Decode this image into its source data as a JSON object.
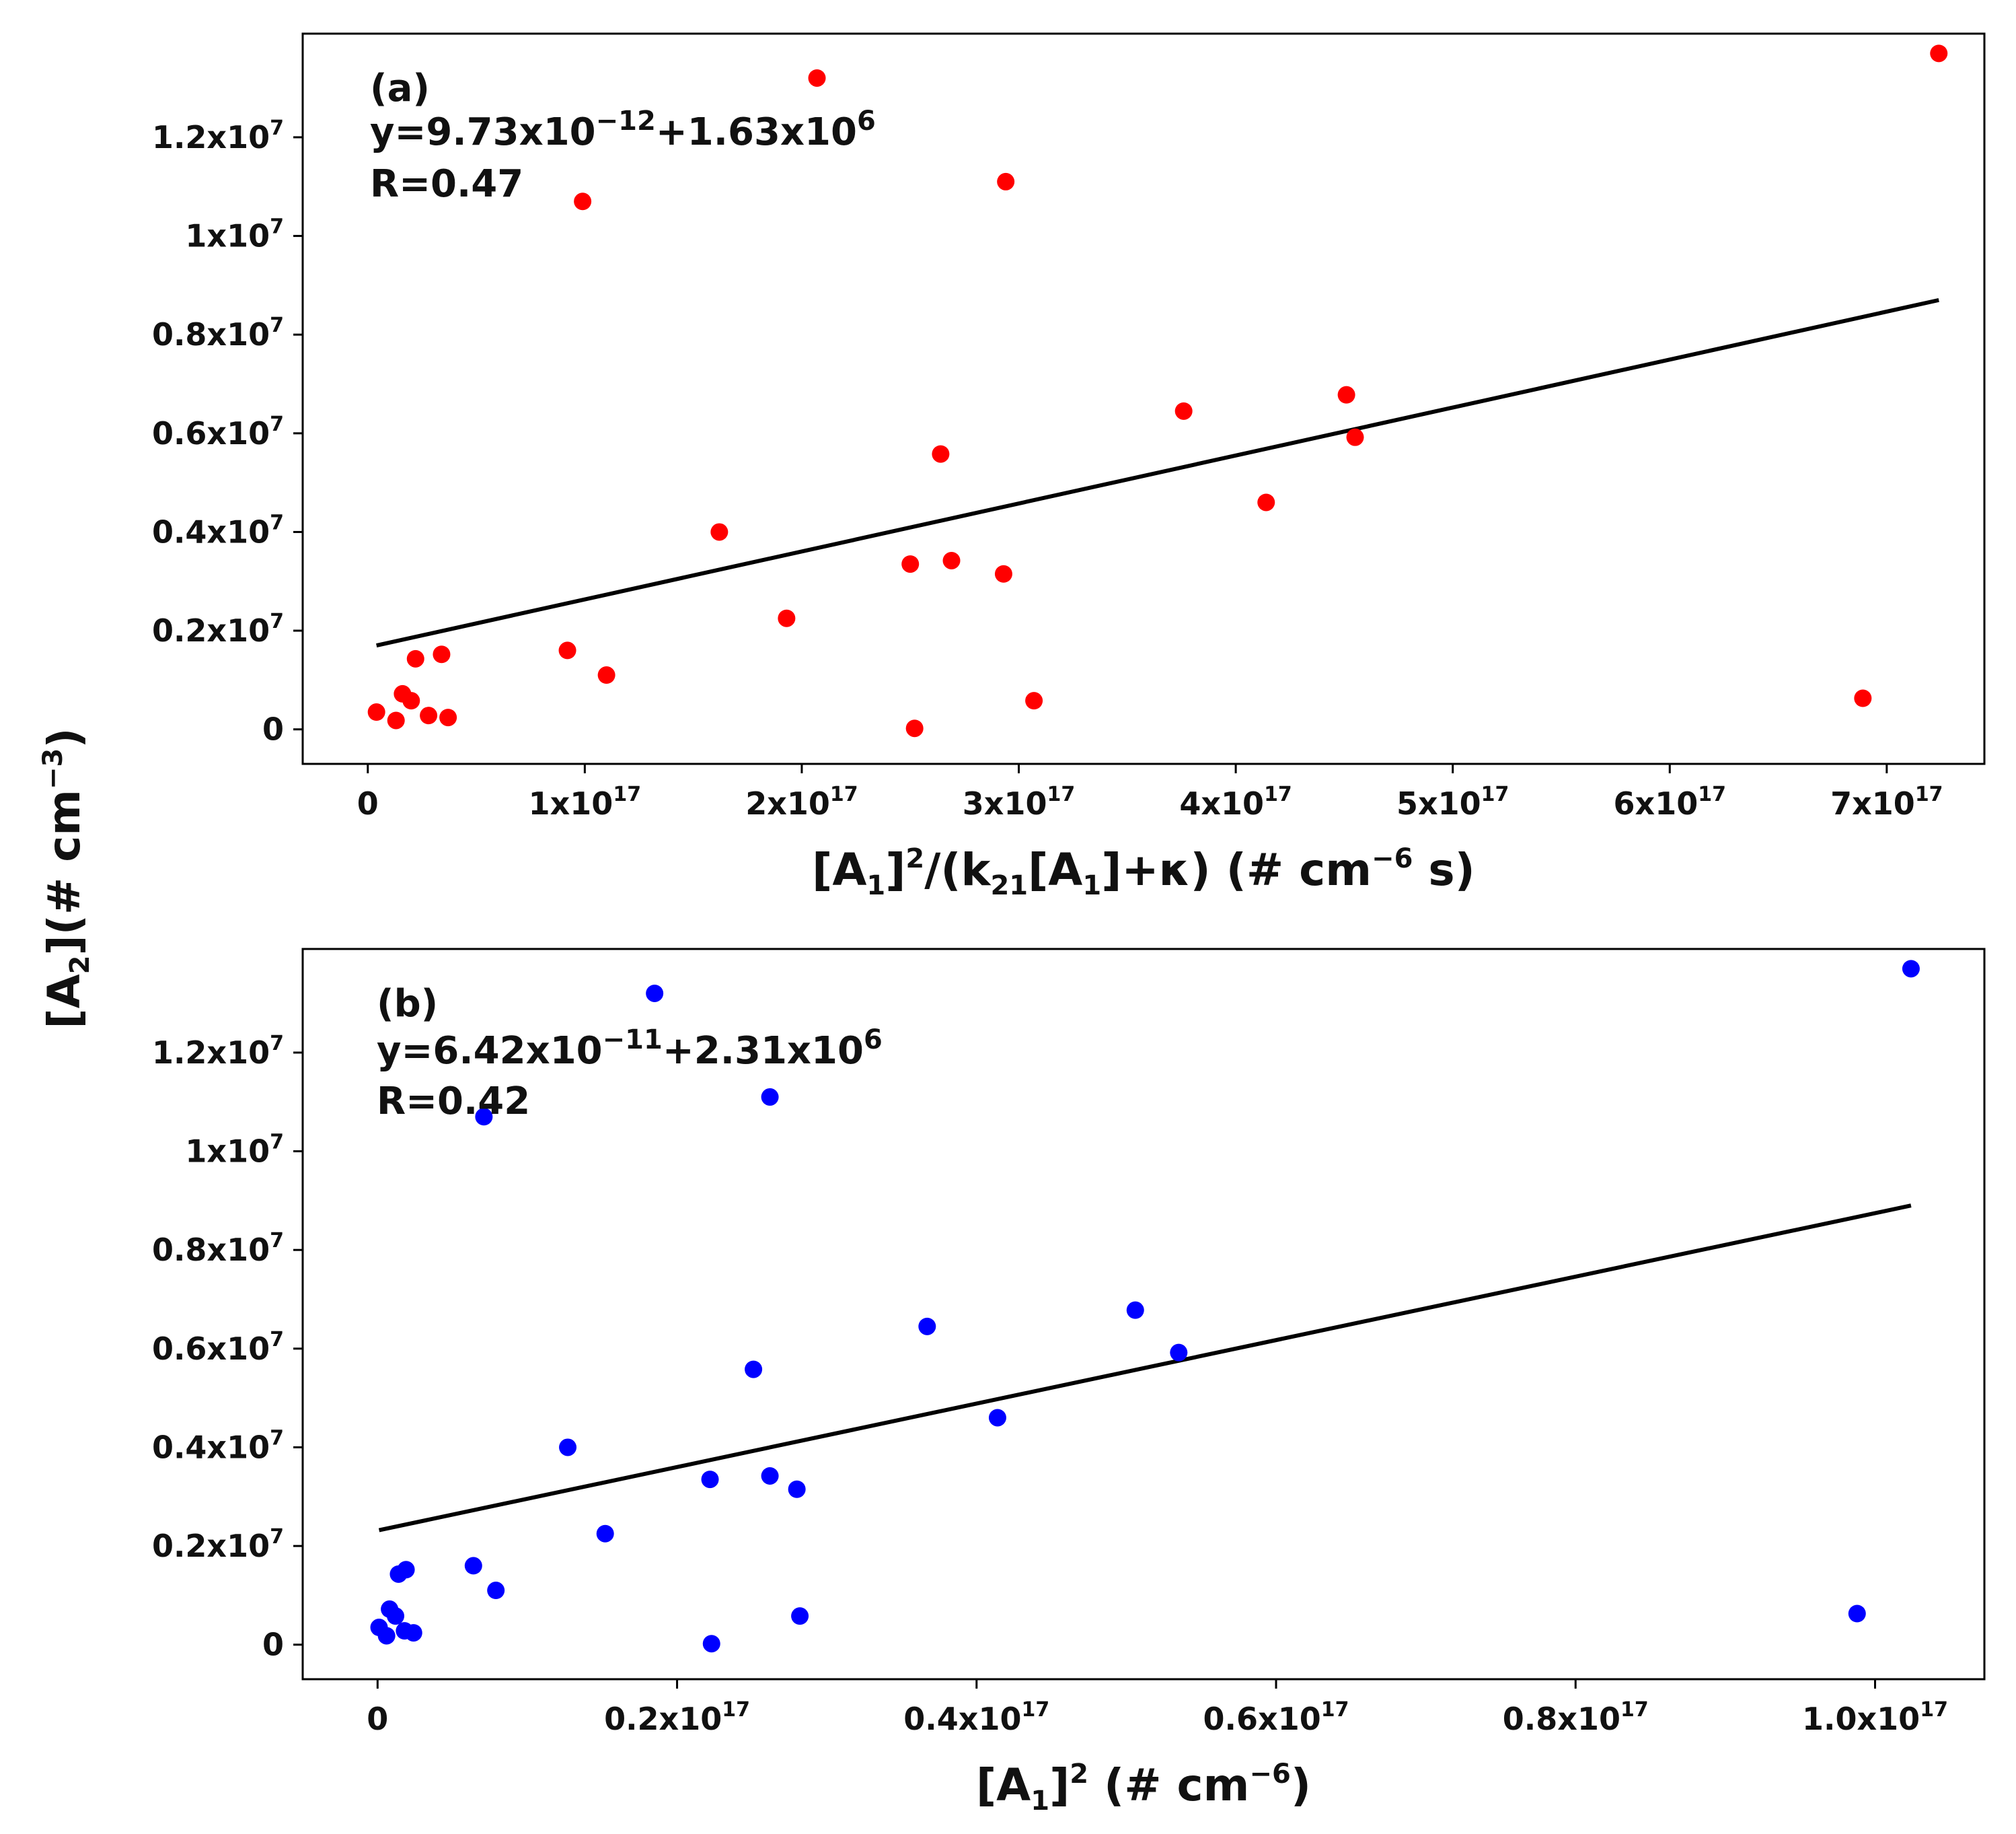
{
  "figure": {
    "shared_ylabel": "[A2](# cm−3)",
    "shared_ylabel_parts": {
      "prefix": "[A",
      "sub": "2",
      "mid": "](# cm",
      "sup": "−3",
      "suffix": ")"
    }
  },
  "chart_data": [
    {
      "type": "scatter",
      "panel": "(a)",
      "equation": "y=9.73x10−12+1.63x106",
      "equation_parts": {
        "prefix": "y=9.73x10",
        "exp1": "−12",
        "middle": "+1.63x10",
        "exp2": "6"
      },
      "r_text": "R=0.47",
      "xlabel": "[A1]2/(k21[A1]+κ) (# cm−6 s)",
      "xlabel_parts": [
        "[A",
        "1",
        "]",
        "2",
        "/(k",
        "21",
        "[A",
        "1",
        "]+κ) (# cm",
        "−6",
        " s)"
      ],
      "ylabel": "[A2](# cm−3)",
      "point_color": "#ff0000",
      "line_color": "#000000",
      "xlim": [
        -3e+16,
        7.45e+17
      ],
      "ylim": [
        -700000.0,
        14100000.0
      ],
      "xticks": [
        0,
        1e+17,
        2e+17,
        3e+17,
        4e+17,
        5e+17,
        6e+17,
        7e+17
      ],
      "xtick_labels": [
        {
          "base": "0",
          "exp": ""
        },
        {
          "base": "1x10",
          "exp": "17"
        },
        {
          "base": "2x10",
          "exp": "17"
        },
        {
          "base": "3x10",
          "exp": "17"
        },
        {
          "base": "4x10",
          "exp": "17"
        },
        {
          "base": "5x10",
          "exp": "17"
        },
        {
          "base": "6x10",
          "exp": "17"
        },
        {
          "base": "7x10",
          "exp": "17"
        }
      ],
      "yticks": [
        0,
        2000000.0,
        4000000.0,
        6000000.0,
        8000000.0,
        10000000.0,
        12000000.0
      ],
      "ytick_labels": [
        {
          "base": "0",
          "exp": ""
        },
        {
          "base": "0.2x10",
          "exp": "7"
        },
        {
          "base": "0.4x10",
          "exp": "7"
        },
        {
          "base": "0.6x10",
          "exp": "7"
        },
        {
          "base": "0.8x10",
          "exp": "7"
        },
        {
          "base": "1x10",
          "exp": "7"
        },
        {
          "base": "1.2x10",
          "exp": "7"
        }
      ],
      "points": {
        "x": [
          4000000000000000.0,
          1.3e+16,
          1.6e+16,
          2e+16,
          2.2e+16,
          2.8e+16,
          3.4e+16,
          3.7e+16,
          9.2e+16,
          9.9e+16,
          1.1e+17,
          1.62e+17,
          1.93e+17,
          2.07e+17,
          2.5e+17,
          2.52e+17,
          2.64e+17,
          2.69e+17,
          2.93e+17,
          2.94e+17,
          3.07e+17,
          3.76e+17,
          4.14e+17,
          4.51e+17,
          4.55e+17,
          6.89e+17,
          7.24e+17
        ],
        "y": [
          350000.0,
          180000.0,
          720000.0,
          580000.0,
          1430000.0,
          280000.0,
          1520000.0,
          240000.0,
          1600000.0,
          10700000.0,
          1100000.0,
          4000000.0,
          2250000.0,
          13200000.0,
          3350000.0,
          20000.0,
          5580000.0,
          3420000.0,
          3150000.0,
          11100000.0,
          580000.0,
          6450000.0,
          4600000.0,
          6780000.0,
          5920000.0,
          630000.0,
          13700000.0
        ]
      },
      "fit_line": {
        "x": [
          4000000000000000.0,
          7.24e+17
        ],
        "y": [
          1700000.0,
          8700000.0
        ]
      }
    },
    {
      "type": "scatter",
      "panel": "(b)",
      "equation": "y=6.42x10−11+2.31x106",
      "equation_parts": {
        "prefix": "y=6.42x10",
        "exp1": "−11",
        "middle": "+2.31x10",
        "exp2": "6"
      },
      "r_text": "R=0.42",
      "xlabel": "[A1]2 (# cm−6)",
      "xlabel_parts": [
        "[A",
        "1",
        "]",
        "2",
        " (# cm",
        "−6",
        ")"
      ],
      "ylabel": "[A2](# cm−3)",
      "point_color": "#0000ff",
      "line_color": "#000000",
      "xlim": [
        -5000000000000000.0,
        1.073e+17
      ],
      "ylim": [
        -700000.0,
        14100000.0
      ],
      "xticks": [
        0,
        2e+16,
        4e+16,
        6e+16,
        8e+16,
        1e+17
      ],
      "xtick_labels": [
        {
          "base": "0",
          "exp": ""
        },
        {
          "base": "0.2x10",
          "exp": "17"
        },
        {
          "base": "0.4x10",
          "exp": "17"
        },
        {
          "base": "0.6x10",
          "exp": "17"
        },
        {
          "base": "0.8x10",
          "exp": "17"
        },
        {
          "base": "1.0x10",
          "exp": "17"
        }
      ],
      "yticks": [
        0,
        2000000.0,
        4000000.0,
        6000000.0,
        8000000.0,
        10000000.0,
        12000000.0
      ],
      "ytick_labels": [
        {
          "base": "0",
          "exp": ""
        },
        {
          "base": "0.2x10",
          "exp": "7"
        },
        {
          "base": "0.4x10",
          "exp": "7"
        },
        {
          "base": "0.6x10",
          "exp": "7"
        },
        {
          "base": "0.8x10",
          "exp": "7"
        },
        {
          "base": "1x10",
          "exp": "7"
        },
        {
          "base": "1.2x10",
          "exp": "7"
        }
      ],
      "points": {
        "x": [
          100000000000000.0,
          600000000000000.0,
          800000000000000.0,
          1200000000000000.0,
          1400000000000000.0,
          1800000000000000.0,
          1900000000000000.0,
          2400000000000000.0,
          6400000000000000.0,
          7100000000000000.0,
          7900000000000000.0,
          1.27e+16,
          1.52e+16,
          1.85e+16,
          2.22e+16,
          2.23e+16,
          2.51e+16,
          2.62e+16,
          2.62e+16,
          2.8e+16,
          2.82e+16,
          3.67e+16,
          4.14e+16,
          5.06e+16,
          5.35e+16,
          9.88e+16,
          1.024e+17
        ],
        "y": [
          350000.0,
          180000.0,
          720000.0,
          580000.0,
          1430000.0,
          280000.0,
          1520000.0,
          240000.0,
          1600000.0,
          10700000.0,
          1100000.0,
          4000000.0,
          2250000.0,
          13200000.0,
          3350000.0,
          20000.0,
          5580000.0,
          3420000.0,
          11100000.0,
          3150000.0,
          580000.0,
          6450000.0,
          4600000.0,
          6780000.0,
          5920000.0,
          630000.0,
          13700000.0
        ]
      },
      "fit_line": {
        "x": [
          100000000000000.0,
          1.024e+17
        ],
        "y": [
          2320000.0,
          8900000.0
        ]
      }
    }
  ]
}
